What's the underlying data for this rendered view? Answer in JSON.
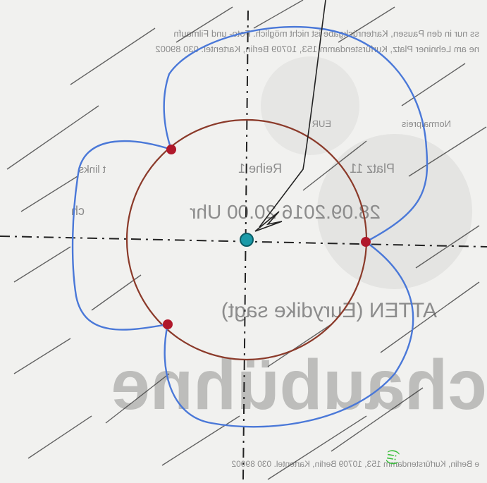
{
  "ticket": {
    "lines": [
      "ss nur in den Pausen, Kartenrückgabe ist nicht möglich. Foto- und Filmaufn",
      "ne am Lehniner Platz, Kurfürstendamm 153, 10709 Berlin, Kartentel. 030 89002",
      "EUR",
      "Normalpreis",
      "t links",
      "Reihe 1",
      "Platz 11",
      "ch",
      "28.09.2016  20.00 Uhr",
      "ATTEN (Eurydike sagt)",
      "chaubühne",
      "e Berlin, Kurfürstendamm 153, 10709 Berlin, Kartentel. 030 89002"
    ]
  }
}
